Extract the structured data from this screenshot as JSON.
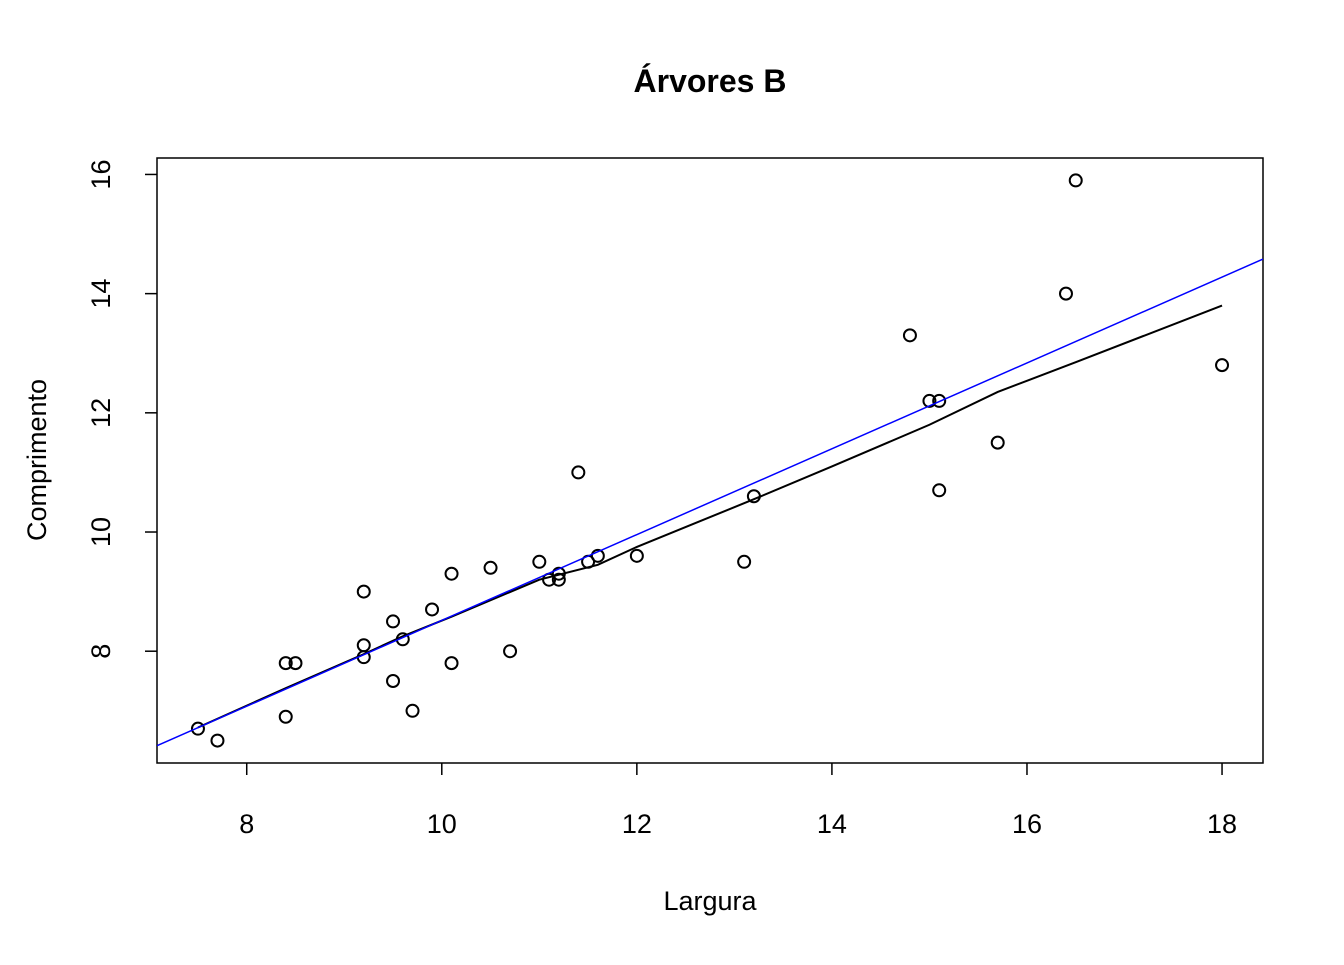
{
  "chart_data": {
    "type": "scatter",
    "title": "Árvores B",
    "xlabel": "Largura",
    "ylabel": "Comprimento",
    "xlim": [
      7.08,
      18.42
    ],
    "ylim": [
      6.124,
      16.276
    ],
    "xticks": [
      8,
      10,
      12,
      14,
      16,
      18
    ],
    "yticks": [
      8,
      10,
      12,
      14,
      16
    ],
    "series": [
      {
        "kind": "points",
        "color": "#000000",
        "x": [
          7.5,
          7.7,
          8.4,
          8.5,
          8.4,
          9.2,
          9.2,
          9.2,
          9.5,
          9.5,
          9.6,
          9.7,
          9.9,
          10.1,
          10.1,
          10.5,
          10.7,
          11.0,
          11.1,
          11.2,
          11.2,
          11.4,
          11.5,
          11.6,
          12.0,
          13.1,
          13.2,
          14.8,
          15.0,
          15.1,
          15.1,
          15.7,
          16.4,
          16.5,
          18.0
        ],
        "values": [
          6.7,
          6.5,
          7.8,
          7.8,
          6.9,
          9.0,
          8.1,
          7.9,
          8.5,
          7.5,
          8.2,
          7.0,
          8.7,
          9.3,
          7.8,
          9.4,
          8.0,
          9.5,
          9.2,
          9.3,
          9.2,
          11.0,
          9.5,
          9.6,
          9.6,
          9.5,
          10.6,
          13.3,
          12.2,
          12.2,
          10.7,
          11.5,
          14.0,
          15.9,
          12.8
        ]
      },
      {
        "kind": "line",
        "color": "#000000",
        "x": [
          7.5,
          8.4,
          9.2,
          9.6,
          10.1,
          11.0,
          11.6,
          12.0,
          12.6,
          13.2,
          14.0,
          15.0,
          15.7,
          16.5,
          18.0
        ],
        "values": [
          6.72,
          7.38,
          7.95,
          8.25,
          8.58,
          9.2,
          9.45,
          9.75,
          10.15,
          10.55,
          11.1,
          11.8,
          12.35,
          12.85,
          13.8
        ]
      }
    ],
    "abline": {
      "intercept": 1.317,
      "slope": 0.72,
      "color": "#0000ff"
    }
  }
}
